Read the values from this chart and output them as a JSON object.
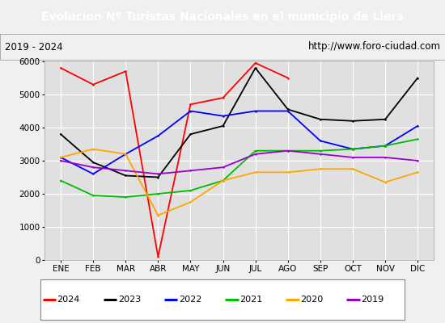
{
  "title": "Evolucion Nº Turistas Nacionales en el municipio de Llers",
  "subtitle_left": "2019 - 2024",
  "subtitle_right": "http://www.foro-ciudad.com",
  "title_bg_color": "#4472c4",
  "title_text_color": "#ffffff",
  "months": [
    "ENE",
    "FEB",
    "MAR",
    "ABR",
    "MAY",
    "JUN",
    "JUL",
    "AGO",
    "SEP",
    "OCT",
    "NOV",
    "DIC"
  ],
  "ylim": [
    0,
    6000
  ],
  "yticks": [
    0,
    1000,
    2000,
    3000,
    4000,
    5000,
    6000
  ],
  "series": {
    "2024": {
      "color": "#ff0000",
      "data": [
        5800,
        5300,
        5700,
        100,
        4700,
        4900,
        5950,
        5500,
        null,
        null,
        null,
        null
      ]
    },
    "2023": {
      "color": "#000000",
      "data": [
        3800,
        2950,
        2550,
        2500,
        3800,
        4050,
        5800,
        4550,
        4250,
        4200,
        4250,
        5500
      ]
    },
    "2022": {
      "color": "#0000ff",
      "data": [
        3100,
        2600,
        3200,
        3750,
        4500,
        4350,
        4500,
        4500,
        3600,
        3350,
        3450,
        4050
      ]
    },
    "2021": {
      "color": "#00bb00",
      "data": [
        2400,
        1950,
        1900,
        2000,
        2100,
        2400,
        3300,
        3300,
        3300,
        3350,
        3450,
        3650
      ]
    },
    "2020": {
      "color": "#ffa500",
      "data": [
        3100,
        3350,
        3200,
        1350,
        1750,
        2400,
        2650,
        2650,
        2750,
        2750,
        2350,
        2650
      ]
    },
    "2019": {
      "color": "#9900cc",
      "data": [
        3000,
        2800,
        2700,
        2600,
        2700,
        2800,
        3200,
        3300,
        3200,
        3100,
        3100,
        3000
      ]
    }
  },
  "legend_order": [
    "2024",
    "2023",
    "2022",
    "2021",
    "2020",
    "2019"
  ],
  "fig_bg": "#f0f0f0",
  "plot_bg": "#e0e0e0",
  "grid_color": "#ffffff",
  "subtitle_border": "#aaaaaa",
  "legend_border": "#888888"
}
